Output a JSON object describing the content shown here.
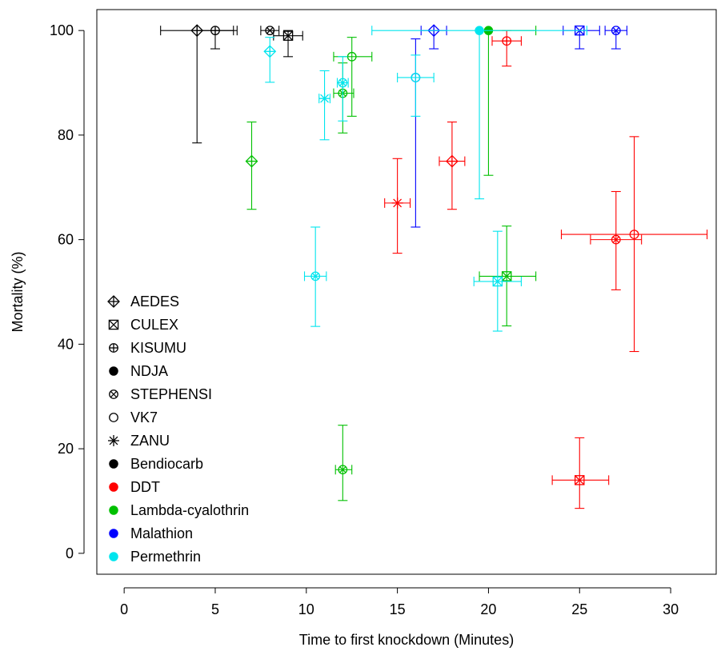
{
  "chart_data": {
    "type": "scatter",
    "title": "",
    "xlabel": "Time to first knockdown (Minutes)",
    "ylabel": "Mortality (%)",
    "xlim": [
      -1.5,
      32.5
    ],
    "ylim": [
      -4,
      104
    ],
    "xticks": [
      "0",
      "5",
      "10",
      "15",
      "20",
      "25",
      "30"
    ],
    "yticks": [
      "0",
      "20",
      "40",
      "60",
      "80",
      "100"
    ],
    "grid": false,
    "legend_position": "left",
    "colors": {
      "Bendiocarb": "#000000",
      "DDT": "#ff0000",
      "Lambda-cyalothrin": "#00c000",
      "Malathion": "#0000ff",
      "Permethrin": "#00e5ee"
    },
    "legend": {
      "species": [
        {
          "label": "AEDES",
          "marker": "diamond-plus"
        },
        {
          "label": "CULEX",
          "marker": "square-x"
        },
        {
          "label": "KISUMU",
          "marker": "circle-plus"
        },
        {
          "label": "NDJA",
          "marker": "filled-circle"
        },
        {
          "label": "STEPHENSI",
          "marker": "circle-x"
        },
        {
          "label": "VK7",
          "marker": "circle"
        },
        {
          "label": "ZANU",
          "marker": "asterisk"
        }
      ],
      "insecticides": [
        {
          "label": "Bendiocarb",
          "color": "#000000"
        },
        {
          "label": "DDT",
          "color": "#ff0000"
        },
        {
          "label": "Lambda-cyalothrin",
          "color": "#00c000"
        },
        {
          "label": "Malathion",
          "color": "#0000ff"
        },
        {
          "label": "Permethrin",
          "color": "#00e5ee"
        }
      ]
    },
    "points": [
      {
        "insecticide": "Bendiocarb",
        "species": "AEDES",
        "x": 4,
        "y": 100,
        "xlo": 2,
        "xhi": 6,
        "ylo": 78.5,
        "yhi": 100
      },
      {
        "insecticide": "Bendiocarb",
        "species": "KISUMU",
        "x": 5,
        "y": 100,
        "xlo": 4,
        "xhi": 6.2,
        "ylo": 96.5,
        "yhi": 100
      },
      {
        "insecticide": "Bendiocarb",
        "species": "STEPHENSI",
        "x": 8,
        "y": 100,
        "xlo": 7.5,
        "xhi": 8.5,
        "ylo": 100,
        "yhi": 100
      },
      {
        "insecticide": "Bendiocarb",
        "species": "CULEX",
        "x": 9,
        "y": 99,
        "xlo": 8.2,
        "xhi": 9.8,
        "ylo": 95,
        "yhi": 100
      },
      {
        "insecticide": "DDT",
        "species": "AEDES",
        "x": 18,
        "y": 75,
        "xlo": 17.3,
        "xhi": 18.7,
        "ylo": 65.8,
        "yhi": 82.5
      },
      {
        "insecticide": "DDT",
        "species": "ZANU",
        "x": 15,
        "y": 67,
        "xlo": 14.3,
        "xhi": 15.7,
        "ylo": 57.4,
        "yhi": 75.5
      },
      {
        "insecticide": "DDT",
        "species": "KISUMU",
        "x": 21,
        "y": 98,
        "xlo": 20.2,
        "xhi": 21.8,
        "ylo": 93.2,
        "yhi": 100
      },
      {
        "insecticide": "DDT",
        "species": "STEPHENSI",
        "x": 27,
        "y": 60,
        "xlo": 25.6,
        "xhi": 28.4,
        "ylo": 50.4,
        "yhi": 69.2
      },
      {
        "insecticide": "DDT",
        "species": "VK7",
        "x": 28,
        "y": 61,
        "xlo": 24,
        "xhi": 32,
        "ylo": 38.6,
        "yhi": 79.7
      },
      {
        "insecticide": "DDT",
        "species": "CULEX",
        "x": 25,
        "y": 14,
        "xlo": 23.5,
        "xhi": 26.6,
        "ylo": 8.6,
        "yhi": 22.1
      },
      {
        "insecticide": "Lambda-cyalothrin",
        "species": "AEDES",
        "x": 7,
        "y": 75,
        "xlo": 7,
        "xhi": 7,
        "ylo": 65.8,
        "yhi": 82.5
      },
      {
        "insecticide": "Lambda-cyalothrin",
        "species": "STEPHENSI",
        "x": 12,
        "y": 88,
        "xlo": 11.5,
        "xhi": 12.6,
        "ylo": 80.4,
        "yhi": 93.8
      },
      {
        "insecticide": "Lambda-cyalothrin",
        "species": "VK7",
        "x": 12.5,
        "y": 95,
        "xlo": 11.5,
        "xhi": 13.6,
        "ylo": 83.6,
        "yhi": 98.7
      },
      {
        "insecticide": "Lambda-cyalothrin",
        "species": "NDJA",
        "x": 20,
        "y": 100,
        "xlo": 20,
        "xhi": 22.6,
        "ylo": 72.3,
        "yhi": 100
      },
      {
        "insecticide": "Lambda-cyalothrin",
        "species": "CULEX",
        "x": 21,
        "y": 53,
        "xlo": 19.5,
        "xhi": 22.6,
        "ylo": 43.5,
        "yhi": 62.6
      },
      {
        "insecticide": "Lambda-cyalothrin",
        "species": "STEPHENSI",
        "x": 12,
        "y": 16,
        "xlo": 11.6,
        "xhi": 12.5,
        "ylo": 10.1,
        "yhi": 24.5
      },
      {
        "insecticide": "Malathion",
        "species": "AEDES",
        "x": 17,
        "y": 100,
        "xlo": 16.3,
        "xhi": 17.7,
        "ylo": 96.5,
        "yhi": 100
      },
      {
        "insecticide": "Malathion",
        "species": "VK7",
        "x": 16,
        "y": 91,
        "xlo": 16,
        "xhi": 16,
        "ylo": 62.4,
        "yhi": 98.4
      },
      {
        "insecticide": "Malathion",
        "species": "CULEX",
        "x": 25,
        "y": 100,
        "xlo": 24.1,
        "xhi": 26.1,
        "ylo": 96.5,
        "yhi": 100
      },
      {
        "insecticide": "Malathion",
        "species": "STEPHENSI",
        "x": 27,
        "y": 100,
        "xlo": 26.4,
        "xhi": 27.6,
        "ylo": 96.5,
        "yhi": 100
      },
      {
        "insecticide": "Permethrin",
        "species": "AEDES",
        "x": 8,
        "y": 96,
        "xlo": 8,
        "xhi": 8,
        "ylo": 90.1,
        "yhi": 98.7
      },
      {
        "insecticide": "Permethrin",
        "species": "STEPHENSI",
        "x": 12,
        "y": 90,
        "xlo": 11.7,
        "xhi": 12.3,
        "ylo": 82.7,
        "yhi": 95
      },
      {
        "insecticide": "Permethrin",
        "species": "ZANU",
        "x": 11,
        "y": 87,
        "xlo": 10.7,
        "xhi": 11.3,
        "ylo": 79.1,
        "yhi": 92.3
      },
      {
        "insecticide": "Permethrin",
        "species": "VK7",
        "x": 16,
        "y": 91,
        "xlo": 15,
        "xhi": 17,
        "ylo": 83.6,
        "yhi": 95.3
      },
      {
        "insecticide": "Permethrin",
        "species": "NDJA",
        "x": 19.5,
        "y": 100,
        "xlo": 13.6,
        "xhi": 25.4,
        "ylo": 67.8,
        "yhi": 100
      },
      {
        "insecticide": "Permethrin",
        "species": "STEPHENSI",
        "x": 10.5,
        "y": 53,
        "xlo": 9.9,
        "xhi": 11.1,
        "ylo": 43.4,
        "yhi": 62.4
      },
      {
        "insecticide": "Permethrin",
        "species": "CULEX",
        "x": 20.5,
        "y": 52,
        "xlo": 19.2,
        "xhi": 21.8,
        "ylo": 42.5,
        "yhi": 61.6
      }
    ]
  }
}
